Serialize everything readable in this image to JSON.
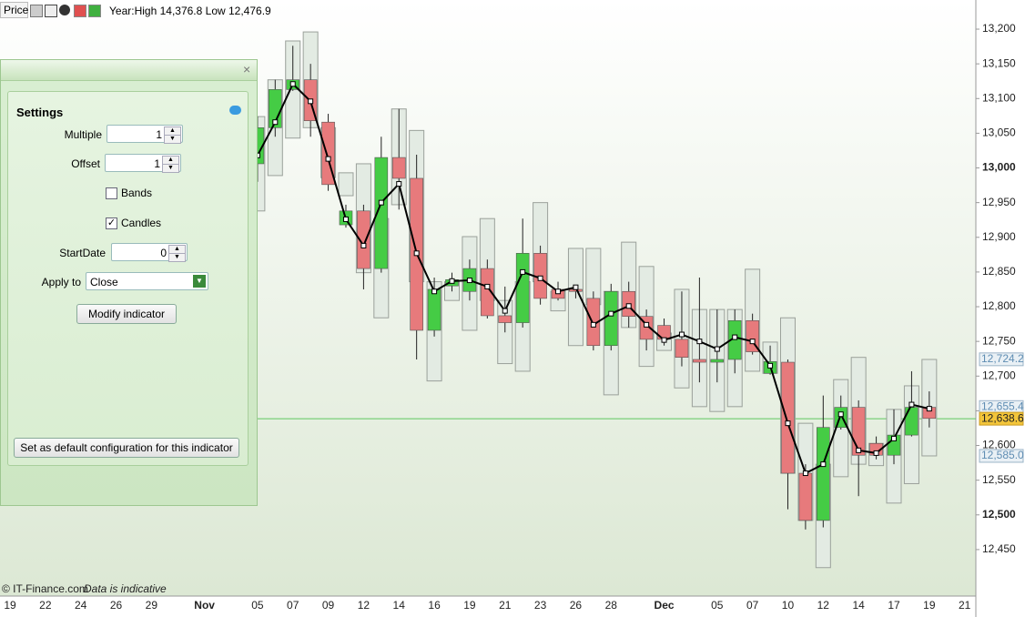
{
  "toolbar": {
    "title": "Price",
    "range": "Year:High 14,376.8 Low 12,476.9"
  },
  "settings_panel": {
    "heading": "Settings",
    "fields": [
      {
        "label": "Multiple",
        "value": 1
      },
      {
        "label": "Offset",
        "value": 1
      },
      {
        "label": "StartDate",
        "value": 0
      }
    ],
    "checkboxes": [
      {
        "label": "Bands",
        "checked": false
      },
      {
        "label": "Candles",
        "checked": true
      }
    ],
    "apply_to": {
      "label": "Apply to",
      "value": "Close"
    },
    "buttons": [
      "Modify indicator",
      "Set as default configuration for this indicator"
    ]
  },
  "footer": {
    "copyright": "© IT-Finance.com",
    "note": "Data is indicative"
  },
  "chart_data": {
    "type": "candlestick",
    "categories": [
      "19",
      null,
      "22",
      null,
      "24",
      null,
      "26",
      null,
      "29",
      null,
      null,
      "Nov",
      null,
      null,
      "05",
      null,
      "07",
      null,
      "09",
      null,
      "12",
      null,
      "14",
      null,
      "16",
      null,
      "19",
      null,
      "21",
      null,
      "23",
      null,
      "26",
      null,
      "28",
      null,
      null,
      "Dec",
      null,
      null,
      "05",
      null,
      "07",
      null,
      "10",
      null,
      "12",
      null,
      "14",
      null,
      "17",
      null,
      "19",
      null,
      "21"
    ],
    "open": [
      null,
      null,
      null,
      null,
      null,
      null,
      null,
      null,
      null,
      null,
      null,
      null,
      null,
      null,
      13006,
      13058,
      13113,
      13127,
      13066,
      12918,
      12938,
      12855,
      13015,
      12985,
      12766,
      12830,
      12822,
      12855,
      12787,
      12777,
      12877,
      12825,
      12825,
      12812,
      12744,
      12822,
      12786,
      12773,
      12753,
      12724,
      12720,
      12724,
      12780,
      12704,
      12720,
      12560,
      12492,
      12626,
      12655,
      12603,
      12586,
      12615,
      12655,
      null,
      null
    ],
    "high": [
      null,
      null,
      null,
      null,
      null,
      null,
      null,
      null,
      null,
      null,
      null,
      null,
      null,
      null,
      13074,
      13127,
      13176,
      13150,
      13078,
      12947,
      12947,
      13045,
      13085,
      13019,
      12842,
      12849,
      12868,
      12868,
      12829,
      12927,
      12888,
      12836,
      12830,
      12822,
      12833,
      12836,
      12796,
      12783,
      12822,
      12842,
      12796,
      12796,
      12790,
      12744,
      12724,
      12573,
      12672,
      12672,
      12665,
      12613,
      12652,
      12707,
      12678,
      null,
      null
    ],
    "low": [
      null,
      null,
      null,
      null,
      null,
      null,
      null,
      null,
      null,
      null,
      null,
      null,
      null,
      null,
      12980,
      13045,
      13111,
      13045,
      12967,
      12914,
      12825,
      12849,
      12940,
      12724,
      12757,
      12822,
      12809,
      12783,
      12763,
      12770,
      12803,
      12809,
      12812,
      12737,
      12737,
      12770,
      12737,
      12744,
      12714,
      12691,
      12691,
      12704,
      12731,
      12702,
      12508,
      12479,
      12482,
      12623,
      12527,
      12580,
      12573,
      12613,
      12626,
      null,
      null
    ],
    "close": [
      null,
      null,
      null,
      null,
      null,
      null,
      null,
      null,
      null,
      null,
      null,
      null,
      null,
      null,
      13058,
      13113,
      13127,
      13068,
      12976,
      12938,
      12855,
      13015,
      12985,
      12766,
      12825,
      12839,
      12855,
      12787,
      12777,
      12877,
      12812,
      12812,
      12822,
      12744,
      12822,
      12786,
      12753,
      12753,
      12727,
      12720,
      12724,
      12780,
      12735,
      12721,
      12560,
      12492,
      12626,
      12655,
      12586,
      12586,
      12615,
      12655,
      12639,
      null,
      null
    ],
    "indicator_top": [
      null,
      null,
      null,
      null,
      null,
      null,
      null,
      null,
      null,
      null,
      null,
      null,
      null,
      null,
      13074,
      13127,
      13183,
      13196,
      13058,
      12993,
      13006,
      12927,
      13085,
      13054,
      12836,
      12836,
      12901,
      12927,
      12809,
      12836,
      12950,
      12822,
      12884,
      12884,
      12822,
      12893,
      12858,
      12762,
      12825,
      12796,
      12796,
      12796,
      12854,
      12749,
      12784,
      12632,
      12573,
      12695,
      12727,
      12603,
      12652,
      12686,
      12724,
      null,
      null
    ],
    "indicator_bottom": [
      null,
      null,
      null,
      null,
      null,
      null,
      null,
      null,
      null,
      null,
      null,
      null,
      null,
      null,
      12938,
      12989,
      13043,
      13058,
      12986,
      12960,
      12849,
      12784,
      12947,
      12836,
      12693,
      12809,
      12766,
      12809,
      12718,
      12707,
      12836,
      12794,
      12744,
      12803,
      12673,
      12770,
      12714,
      12737,
      12683,
      12656,
      12649,
      12656,
      12707,
      12704,
      12560,
      12492,
      12424,
      12555,
      12573,
      12571,
      12517,
      12545,
      12585,
      null,
      null
    ],
    "indicator_close": [
      null,
      null,
      null,
      null,
      null,
      null,
      null,
      null,
      null,
      null,
      null,
      null,
      null,
      null,
      13018,
      13066,
      13121,
      13096,
      13013,
      12926,
      12888,
      12950,
      12977,
      12877,
      12822,
      12837,
      12838,
      12829,
      12794,
      12850,
      12841,
      12822,
      12828,
      12774,
      12790,
      12801,
      12774,
      12752,
      12760,
      12750,
      12739,
      12756,
      12750,
      12715,
      12632,
      12560,
      12573,
      12645,
      12593,
      12589,
      12610,
      12659,
      12653,
      null,
      null
    ],
    "ylim": [
      12383,
      13242
    ],
    "yticks": [
      {
        "value": 12450,
        "label": "12,450"
      },
      {
        "value": 12500,
        "label": "12,500"
      },
      {
        "value": 12550,
        "label": "12,550"
      },
      {
        "value": 12600,
        "label": "12,600"
      },
      {
        "value": 12650,
        "label": "12,650"
      },
      {
        "value": 12700,
        "label": "12,700"
      },
      {
        "value": 12750,
        "label": "12,750"
      },
      {
        "value": 12800,
        "label": "12,800"
      },
      {
        "value": 12850,
        "label": "12,850"
      },
      {
        "value": 12900,
        "label": "12,900"
      },
      {
        "value": 12950,
        "label": "12,950"
      },
      {
        "value": 13000,
        "label": "13,000"
      },
      {
        "value": 13050,
        "label": "13,050"
      },
      {
        "value": 13100,
        "label": "13,100"
      },
      {
        "value": 13150,
        "label": "13,150"
      },
      {
        "value": 13200,
        "label": "13,200"
      }
    ],
    "price_markers": [
      {
        "value": 12724.2,
        "label": "12,724.2"
      },
      {
        "value": 12655.4,
        "label": "12,655.4"
      },
      {
        "value": 12585.0,
        "label": "12,585.0"
      }
    ],
    "last_price": {
      "value": 12638.6,
      "label": "12,638.6"
    },
    "up_color": "#45cc45",
    "down_color": "#e77a7c",
    "indicator_color": "#e3ebe3",
    "line_color": "#000000",
    "last_price_color": "#5fc85f"
  }
}
